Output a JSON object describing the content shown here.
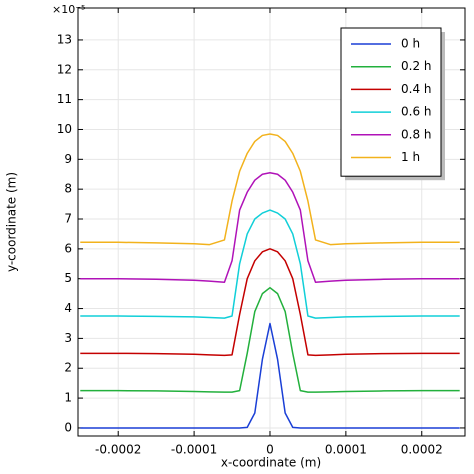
{
  "chart_data": {
    "type": "line",
    "x_label": "x-coordinate (m)",
    "y_label": "y-coordinate (m)",
    "y_multiplier": "×10⁻⁵",
    "x": [
      -0.00025,
      -0.0002,
      -0.00015,
      -0.0001,
      -8e-05,
      -6e-05,
      -5e-05,
      -4e-05,
      -3e-05,
      -2e-05,
      -1e-05,
      0,
      1e-05,
      2e-05,
      3e-05,
      4e-05,
      5e-05,
      6e-05,
      8e-05,
      0.0001,
      0.00015,
      0.0002,
      0.00025
    ],
    "series": [
      {
        "name": "0 h",
        "color": "#1a3fd6",
        "values": [
          0,
          0,
          0,
          0,
          0,
          0,
          0,
          0,
          0.02,
          0.5,
          2.3,
          3.5,
          2.3,
          0.5,
          0.02,
          0,
          0,
          0,
          0,
          0,
          0,
          0,
          0
        ]
      },
      {
        "name": "0.2 h",
        "color": "#22b03c",
        "values": [
          1.25,
          1.25,
          1.24,
          1.22,
          1.21,
          1.2,
          1.2,
          1.25,
          2.5,
          3.9,
          4.5,
          4.7,
          4.5,
          3.9,
          2.5,
          1.25,
          1.2,
          1.2,
          1.21,
          1.22,
          1.24,
          1.25,
          1.25
        ]
      },
      {
        "name": "0.4 h",
        "color": "#c40000",
        "values": [
          2.5,
          2.5,
          2.49,
          2.47,
          2.45,
          2.43,
          2.45,
          3.8,
          5.0,
          5.6,
          5.9,
          6.0,
          5.9,
          5.6,
          5.0,
          3.8,
          2.45,
          2.43,
          2.45,
          2.47,
          2.49,
          2.5,
          2.5
        ]
      },
      {
        "name": "0.6 h",
        "color": "#10cfd8",
        "values": [
          3.75,
          3.75,
          3.74,
          3.72,
          3.7,
          3.68,
          3.75,
          5.5,
          6.5,
          7.0,
          7.2,
          7.3,
          7.2,
          7.0,
          6.5,
          5.5,
          3.75,
          3.68,
          3.7,
          3.72,
          3.74,
          3.75,
          3.75
        ]
      },
      {
        "name": "0.8 h",
        "color": "#b012b8",
        "values": [
          5.0,
          5.0,
          4.98,
          4.95,
          4.92,
          4.88,
          5.6,
          7.3,
          7.9,
          8.3,
          8.5,
          8.55,
          8.5,
          8.3,
          7.9,
          7.3,
          5.6,
          4.88,
          4.92,
          4.95,
          4.98,
          5.0,
          5.0
        ]
      },
      {
        "name": "1 h",
        "color": "#f2b21c",
        "values": [
          6.22,
          6.22,
          6.2,
          6.17,
          6.14,
          6.3,
          7.6,
          8.6,
          9.2,
          9.6,
          9.8,
          9.85,
          9.8,
          9.6,
          9.2,
          8.6,
          7.6,
          6.3,
          6.14,
          6.17,
          6.2,
          6.22,
          6.22
        ]
      }
    ],
    "xlim": [
      -0.000253,
      0.000257
    ],
    "ylim": [
      -0.27,
      14.07
    ],
    "xticks": [
      -0.0002,
      -0.0001,
      0,
      0.0001,
      0.0002
    ],
    "yticks": [
      0,
      1,
      2,
      3,
      4,
      5,
      6,
      7,
      8,
      9,
      10,
      11,
      12,
      13
    ],
    "grid": true,
    "legend": "upper right"
  }
}
